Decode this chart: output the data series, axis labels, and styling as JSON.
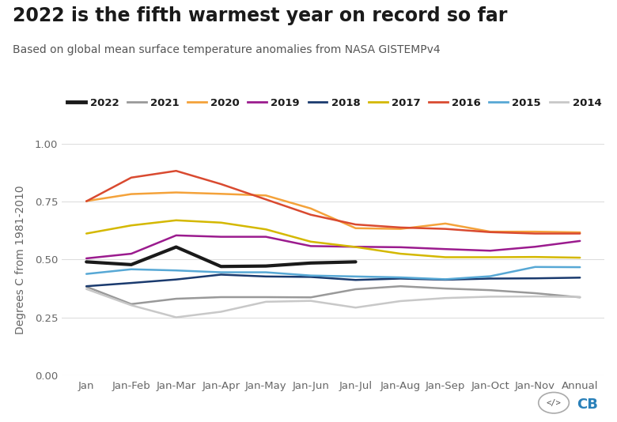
{
  "title": "2022 is the fifth warmest year on record so far",
  "subtitle": "Based on global mean surface temperature anomalies from NASA GISTEMPv4",
  "ylabel": "Degrees C from 1981-2010",
  "x_labels": [
    "Jan",
    "Jan-Feb",
    "Jan-Mar",
    "Jan-Apr",
    "Jan-May",
    "Jan-Jun",
    "Jan-Jul",
    "Jan-Aug",
    "Jan-Sep",
    "Jan-Oct",
    "Jan-Nov",
    "Annual"
  ],
  "ylim": [
    0.0,
    1.0
  ],
  "yticks": [
    0.0,
    0.25,
    0.5,
    0.75,
    1.0
  ],
  "series": [
    {
      "year": "2022",
      "color": "#1a1a1a",
      "linewidth": 3.0,
      "data": [
        0.49,
        0.478,
        0.554,
        0.47,
        0.472,
        0.485,
        0.49,
        null,
        null,
        null,
        null,
        null
      ]
    },
    {
      "year": "2021",
      "color": "#999999",
      "linewidth": 1.8,
      "data": [
        0.383,
        0.308,
        0.331,
        0.338,
        0.338,
        0.337,
        0.372,
        0.385,
        0.375,
        0.368,
        0.355,
        0.337
      ]
    },
    {
      "year": "2020",
      "color": "#f4a23a",
      "linewidth": 1.8,
      "data": [
        0.752,
        0.782,
        0.789,
        0.783,
        0.776,
        0.72,
        0.635,
        0.632,
        0.655,
        0.62,
        0.62,
        0.617
      ]
    },
    {
      "year": "2019",
      "color": "#9b1b8e",
      "linewidth": 1.8,
      "data": [
        0.505,
        0.525,
        0.604,
        0.598,
        0.598,
        0.558,
        0.555,
        0.553,
        0.545,
        0.538,
        0.555,
        0.58
      ]
    },
    {
      "year": "2018",
      "color": "#1a3a6e",
      "linewidth": 1.8,
      "data": [
        0.385,
        0.399,
        0.414,
        0.435,
        0.427,
        0.425,
        0.412,
        0.418,
        0.413,
        0.418,
        0.419,
        0.422
      ]
    },
    {
      "year": "2017",
      "color": "#d4b800",
      "linewidth": 1.8,
      "data": [
        0.612,
        0.647,
        0.669,
        0.659,
        0.63,
        0.577,
        0.554,
        0.525,
        0.51,
        0.51,
        0.511,
        0.508
      ]
    },
    {
      "year": "2016",
      "color": "#d94a30",
      "linewidth": 1.8,
      "data": [
        0.751,
        0.853,
        0.882,
        0.825,
        0.759,
        0.693,
        0.651,
        0.638,
        0.632,
        0.618,
        0.612,
        0.612
      ]
    },
    {
      "year": "2015",
      "color": "#57a8d5",
      "linewidth": 1.8,
      "data": [
        0.438,
        0.458,
        0.453,
        0.445,
        0.445,
        0.431,
        0.427,
        0.423,
        0.415,
        0.428,
        0.468,
        0.467
      ]
    },
    {
      "year": "2014",
      "color": "#c8c8c8",
      "linewidth": 1.8,
      "data": [
        0.373,
        0.303,
        0.251,
        0.275,
        0.318,
        0.322,
        0.293,
        0.321,
        0.334,
        0.34,
        0.341,
        0.339
      ]
    }
  ],
  "background_color": "#ffffff",
  "grid_color": "#dddddd",
  "tick_color": "#666666",
  "title_fontsize": 17,
  "subtitle_fontsize": 10,
  "legend_fontsize": 9.5,
  "axis_label_fontsize": 10,
  "tick_fontsize": 9.5,
  "logo_code_color": "#666666",
  "logo_cb_color": "#2980b9"
}
